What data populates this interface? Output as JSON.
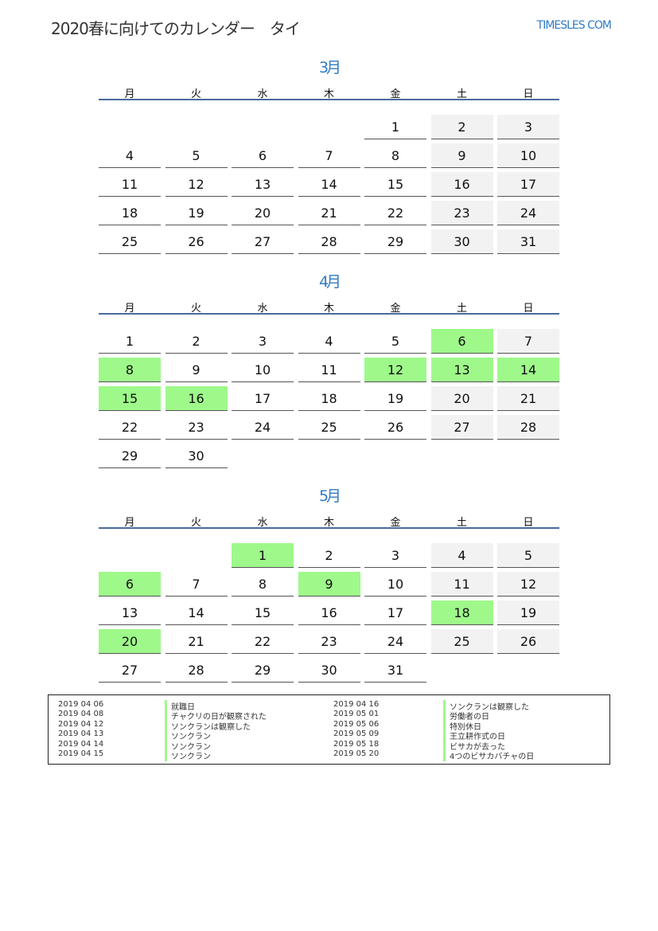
{
  "header": {
    "title": "2020春に向けてのカレンダー　タイ",
    "site": "TIMESLES COM"
  },
  "weekdays": [
    "月",
    "火",
    "水",
    "木",
    "金",
    "土",
    "日"
  ],
  "colors": {
    "accent": "#2f7bc4",
    "holiday": "#9ef98a",
    "weekend": "#f2f2f2",
    "rule": "#4a6aa0"
  },
  "months": [
    {
      "title": "3月",
      "start_weekday_index": 4,
      "days": 31,
      "holidays": []
    },
    {
      "title": "4月",
      "start_weekday_index": 0,
      "days": 30,
      "holidays": [
        6,
        8,
        12,
        13,
        14,
        15,
        16
      ]
    },
    {
      "title": "5月",
      "start_weekday_index": 2,
      "days": 31,
      "holidays": [
        1,
        6,
        9,
        18,
        20
      ]
    }
  ],
  "legend": [
    {
      "date": "2019 04 06",
      "name": "就職日"
    },
    {
      "date": "2019 04 08",
      "name": "チャクリの日が観察された"
    },
    {
      "date": "2019 04 12",
      "name": "ソンクランは観察した"
    },
    {
      "date": "2019 04 13",
      "name": "ソンクラン"
    },
    {
      "date": "2019 04 14",
      "name": "ソンクラン"
    },
    {
      "date": "2019 04 15",
      "name": "ソンクラン"
    },
    {
      "date": "2019 04 16",
      "name": "ソンクランは観察した"
    },
    {
      "date": "2019 05 01",
      "name": "労働者の日"
    },
    {
      "date": "2019 05 06",
      "name": "特別休日"
    },
    {
      "date": "2019 05 09",
      "name": "王立耕作式の日"
    },
    {
      "date": "2019 05 18",
      "name": "ビサカが去った"
    },
    {
      "date": "2019 05 20",
      "name": "4つのビサカバチャの日"
    }
  ]
}
